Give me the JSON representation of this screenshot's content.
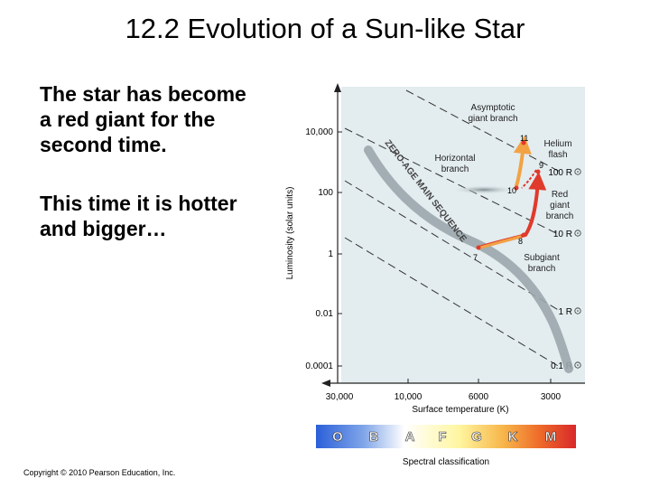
{
  "slide": {
    "title": "12.2 Evolution of a Sun-like Star",
    "paragraph1": [
      "The star has become",
      "a red giant for the",
      "second time."
    ],
    "paragraph2": [
      "This time it is hotter",
      "and bigger…"
    ],
    "copyright": "Copyright © 2010 Pearson Education, Inc."
  },
  "diagram": {
    "y_axis_label": "Luminosity (solar units)",
    "x_axis_label": "Surface temperature (K)",
    "y_ticks": [
      "10,000",
      "100",
      "1",
      "0.01",
      "0.0001"
    ],
    "x_ticks": [
      "30,000",
      "10,000",
      "6000",
      "3000"
    ],
    "main_sequence_label": "ZERO-AGE MAIN SEQUENCE",
    "region_labels": {
      "asymptotic": [
        "Asymptotic",
        "giant branch"
      ],
      "horizontal": [
        "Horizontal",
        "branch"
      ],
      "helium": [
        "Helium",
        "flash"
      ],
      "red_giant": [
        "Red",
        "giant",
        "branch"
      ],
      "subgiant": [
        "Subgiant",
        "branch"
      ]
    },
    "radius_labels": [
      "100 R",
      "10 R",
      "1 R",
      "0.1 R"
    ],
    "stage_numbers": [
      "7",
      "8",
      "9",
      "10",
      "11"
    ],
    "spectral_classes": [
      "O",
      "B",
      "A",
      "F",
      "G",
      "K",
      "M"
    ],
    "spectral_caption": "Spectral classification",
    "colors": {
      "panel": "#e3ecef",
      "main_sequence": "#9aa7ac",
      "red_branch": "#e03a2c",
      "orange_branch": "#f2a243",
      "horizontal_branch": "#7e8c8f"
    }
  }
}
